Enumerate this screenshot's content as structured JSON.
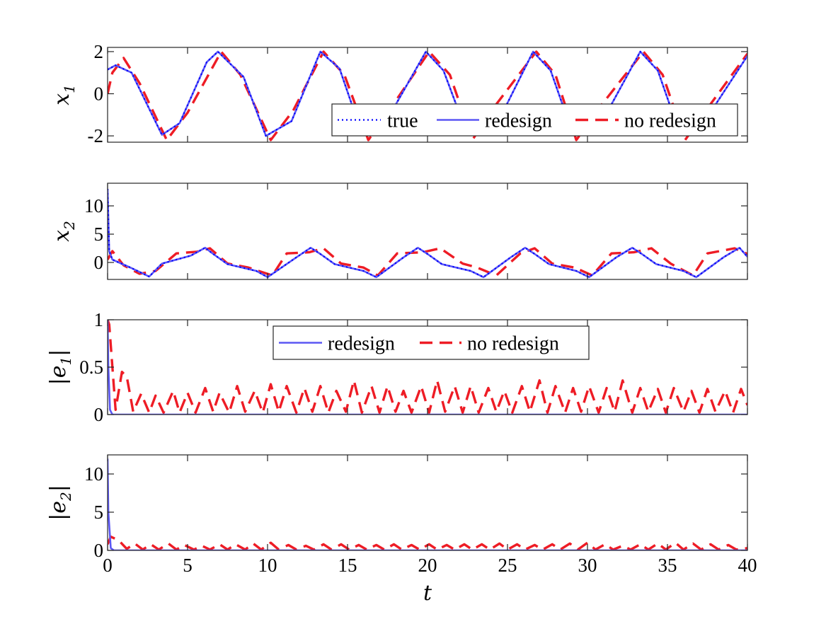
{
  "chart_data": [
    {
      "type": "line",
      "title": "",
      "xlabel": "",
      "ylabel": "x",
      "ylabel_sub": "1",
      "xlim": [
        0,
        40
      ],
      "ylim": [
        -2.3,
        2.2
      ],
      "yticks": [
        -2,
        0,
        2
      ],
      "ytick_labels": [
        "-2",
        "0",
        "2"
      ],
      "legend": {
        "placement": "bottom-right",
        "entries": [
          "true",
          "redesign",
          "no redesign"
        ]
      },
      "series": [
        {
          "name": "true",
          "style": "dotted",
          "color": "#0000ff",
          "x": [
            0,
            0.5,
            1.5,
            3.4,
            4.5,
            6.2,
            6.9,
            8.5,
            9.9,
            11.5,
            13.3,
            14.5,
            15.9,
            17.5,
            19.9,
            21.0,
            22.5,
            24.5,
            26.6,
            27.7,
            29.1,
            31.0,
            33.3,
            34.4,
            35.8,
            37.5,
            40.0
          ],
          "y": [
            1.15,
            1.35,
            1.0,
            -1.95,
            -1.4,
            1.5,
            2.0,
            0.8,
            -2.0,
            -1.3,
            2.0,
            1.2,
            -1.9,
            -1.2,
            2.0,
            1.1,
            -1.95,
            -1.2,
            2.0,
            1.1,
            -1.95,
            -1.2,
            2.0,
            1.1,
            -1.95,
            -1.1,
            1.8
          ]
        },
        {
          "name": "redesign",
          "style": "solid",
          "color": "#5b57f4",
          "x": [
            0,
            0.5,
            1.5,
            3.4,
            4.5,
            6.2,
            6.9,
            8.5,
            9.9,
            11.5,
            13.3,
            14.5,
            15.9,
            17.5,
            19.9,
            21.0,
            22.5,
            24.5,
            26.6,
            27.7,
            29.1,
            31.0,
            33.3,
            34.4,
            35.8,
            37.5,
            40.0
          ],
          "y": [
            1.15,
            1.35,
            1.0,
            -1.95,
            -1.4,
            1.5,
            2.0,
            0.8,
            -2.0,
            -1.3,
            2.0,
            1.2,
            -1.9,
            -1.2,
            2.0,
            1.1,
            -1.95,
            -1.2,
            2.0,
            1.1,
            -1.95,
            -1.2,
            2.0,
            1.1,
            -1.95,
            -1.1,
            1.8
          ]
        },
        {
          "name": "no redesign",
          "style": "dashed",
          "color": "#ee1c25",
          "x": [
            0,
            0.3,
            1.0,
            2.0,
            3.7,
            5.0,
            7.1,
            8.3,
            10.2,
            11.6,
            13.5,
            14.8,
            16.3,
            17.6,
            20.1,
            21.4,
            22.8,
            24.0,
            26.8,
            28.0,
            29.3,
            30.6,
            33.5,
            34.7,
            36.1,
            37.4,
            40.0
          ],
          "y": [
            0.0,
            1.0,
            1.7,
            0.5,
            -2.2,
            -0.9,
            2.0,
            0.9,
            -2.2,
            -0.8,
            2.0,
            0.9,
            -2.2,
            -0.8,
            2.0,
            0.9,
            -2.2,
            -0.8,
            2.0,
            0.9,
            -2.2,
            -0.8,
            2.0,
            0.9,
            -2.2,
            -0.8,
            1.9
          ]
        }
      ]
    },
    {
      "type": "line",
      "title": "",
      "xlabel": "",
      "ylabel": "x",
      "ylabel_sub": "2",
      "xlim": [
        0,
        40
      ],
      "ylim": [
        -3,
        14
      ],
      "yticks": [
        0,
        5,
        10
      ],
      "ytick_labels": [
        "0",
        "5",
        "10"
      ],
      "series": [
        {
          "name": "true",
          "style": "dotted",
          "color": "#0000ff",
          "x": [
            0,
            0.1,
            0.3,
            1.5,
            2.6,
            3.4,
            5.2,
            6.1,
            6.6,
            7.5,
            9.3,
            10.0,
            11.8,
            12.7,
            13.3,
            14.2,
            16.0,
            16.8,
            18.5,
            19.4,
            20.0,
            20.9,
            22.7,
            23.5,
            25.2,
            26.1,
            26.7,
            27.6,
            29.3,
            30.1,
            31.8,
            32.8,
            33.4,
            34.3,
            36.0,
            36.8,
            38.5,
            39.5,
            40.0
          ],
          "y": [
            13,
            2,
            0.5,
            -1.0,
            -2.5,
            -0.2,
            1.2,
            2.6,
            1.5,
            -0.3,
            -1.5,
            -2.6,
            0.9,
            2.6,
            1.5,
            -0.3,
            -1.5,
            -2.6,
            0.9,
            2.6,
            1.5,
            -0.3,
            -1.5,
            -2.6,
            0.9,
            2.6,
            1.5,
            -0.3,
            -1.5,
            -2.6,
            0.9,
            2.6,
            1.5,
            -0.3,
            -1.5,
            -2.6,
            0.9,
            2.6,
            1.0
          ]
        },
        {
          "name": "redesign",
          "style": "solid",
          "color": "#5b57f4",
          "x": [
            0,
            0.1,
            0.3,
            1.5,
            2.6,
            3.4,
            5.2,
            6.1,
            6.6,
            7.5,
            9.3,
            10.0,
            11.8,
            12.7,
            13.3,
            14.2,
            16.0,
            16.8,
            18.5,
            19.4,
            20.0,
            20.9,
            22.7,
            23.5,
            25.2,
            26.1,
            26.7,
            27.6,
            29.3,
            30.1,
            31.8,
            32.8,
            33.4,
            34.3,
            36.0,
            36.8,
            38.5,
            39.5,
            40.0
          ],
          "y": [
            13,
            2,
            0.5,
            -1.0,
            -2.5,
            -0.2,
            1.2,
            2.6,
            1.5,
            -0.3,
            -1.5,
            -2.6,
            0.9,
            2.6,
            1.5,
            -0.3,
            -1.5,
            -2.6,
            0.9,
            2.6,
            1.5,
            -0.3,
            -1.5,
            -2.6,
            0.9,
            2.6,
            1.5,
            -0.3,
            -1.5,
            -2.6,
            0.9,
            2.6,
            1.5,
            -0.3,
            -1.5,
            -2.6,
            0.9,
            2.6,
            1.0
          ]
        },
        {
          "name": "no redesign",
          "style": "dashed",
          "color": "#ee1c25",
          "x": [
            0,
            0.3,
            1.0,
            2.0,
            3.0,
            4.3,
            5.6,
            6.4,
            7.5,
            8.8,
            10.3,
            11.2,
            12.6,
            13.5,
            14.6,
            16.0,
            16.9,
            18.1,
            19.7,
            20.8,
            22.2,
            23.1,
            24.3,
            25.8,
            26.7,
            27.8,
            29.2,
            30.3,
            31.5,
            32.9,
            34.0,
            35.2,
            36.6,
            37.5,
            39.2,
            40.0
          ],
          "y": [
            0.5,
            2.0,
            -0.5,
            -2.0,
            -1.5,
            1.6,
            1.9,
            2.5,
            -0.2,
            -0.9,
            -2.3,
            1.6,
            1.8,
            2.5,
            -0.2,
            -0.9,
            -2.3,
            1.6,
            1.8,
            2.5,
            -0.2,
            -0.9,
            -2.3,
            1.6,
            2.5,
            -0.2,
            -0.9,
            -2.3,
            1.6,
            1.8,
            2.5,
            -0.2,
            -2.3,
            1.6,
            2.5,
            1.5
          ]
        }
      ]
    },
    {
      "type": "line",
      "title": "",
      "xlabel": "",
      "ylabel": "|e",
      "ylabel_sub": "1",
      "ylabel_suffix": "|",
      "xlim": [
        0,
        40
      ],
      "ylim": [
        0,
        1
      ],
      "yticks": [
        0,
        0.5,
        1
      ],
      "ytick_labels": [
        "0",
        "0.5",
        "1"
      ],
      "legend": {
        "placement": "top-center",
        "entries": [
          "redesign",
          "no redesign"
        ]
      },
      "series": [
        {
          "name": "redesign",
          "style": "solid",
          "color": "#5b57f4",
          "x": [
            0,
            0.05,
            0.15,
            0.3,
            40.0
          ],
          "y": [
            1.0,
            0.5,
            0.05,
            0.0,
            0.0
          ]
        },
        {
          "name": "no redesign",
          "style": "dashed",
          "color": "#ee1c25",
          "x": [
            0,
            0.1,
            0.5,
            0.9,
            1.2,
            1.6,
            2.1,
            2.6,
            3.0,
            3.5,
            4.1,
            4.5,
            5.0,
            5.5,
            6.1,
            6.6,
            7.0,
            7.6,
            8.1,
            8.6,
            9.2,
            9.7,
            10.2,
            10.7,
            11.2,
            11.8,
            12.3,
            12.8,
            13.3,
            13.8,
            14.3,
            14.9,
            15.4,
            15.9,
            16.5,
            17.0,
            17.5,
            18.0,
            18.5,
            19.0,
            19.6,
            20.1,
            20.6,
            21.1,
            21.7,
            22.2,
            22.7,
            23.2,
            23.8,
            24.3,
            24.8,
            25.3,
            25.9,
            26.4,
            27.0,
            27.5,
            28.0,
            28.6,
            29.1,
            29.6,
            30.1,
            30.7,
            31.2,
            31.7,
            32.2,
            32.8,
            33.3,
            33.8,
            34.4,
            34.9,
            35.4,
            36.0,
            36.5,
            37.0,
            37.5,
            38.0,
            38.6,
            39.1,
            39.6,
            40.0
          ],
          "y": [
            1.0,
            0.95,
            0.05,
            0.45,
            0.4,
            0.03,
            0.22,
            0.02,
            0.2,
            0.02,
            0.25,
            0.02,
            0.23,
            0.02,
            0.28,
            0.03,
            0.23,
            0.02,
            0.3,
            0.03,
            0.25,
            0.02,
            0.32,
            0.03,
            0.3,
            0.02,
            0.28,
            0.03,
            0.3,
            0.02,
            0.25,
            0.03,
            0.36,
            0.02,
            0.3,
            0.02,
            0.3,
            0.03,
            0.25,
            0.02,
            0.3,
            0.02,
            0.36,
            0.03,
            0.3,
            0.02,
            0.3,
            0.02,
            0.28,
            0.03,
            0.25,
            0.02,
            0.3,
            0.03,
            0.36,
            0.02,
            0.3,
            0.02,
            0.28,
            0.03,
            0.3,
            0.02,
            0.28,
            0.03,
            0.36,
            0.02,
            0.28,
            0.03,
            0.27,
            0.02,
            0.28,
            0.03,
            0.25,
            0.02,
            0.27,
            0.03,
            0.25,
            0.02,
            0.27,
            0.1
          ]
        }
      ]
    },
    {
      "type": "line",
      "title": "",
      "xlabel": "t",
      "ylabel": "|e",
      "ylabel_sub": "2",
      "ylabel_suffix": "|",
      "xlim": [
        0,
        40
      ],
      "ylim": [
        0,
        12.5
      ],
      "yticks": [
        0,
        5,
        10
      ],
      "ytick_labels": [
        "0",
        "5",
        "10"
      ],
      "xticks": [
        0,
        5,
        10,
        15,
        20,
        25,
        30,
        35,
        40
      ],
      "xtick_labels": [
        "0",
        "5",
        "10",
        "15",
        "20",
        "25",
        "30",
        "35",
        "40"
      ],
      "series": [
        {
          "name": "redesign",
          "style": "solid",
          "color": "#5b57f4",
          "x": [
            0,
            0.05,
            0.2,
            0.4,
            40.0
          ],
          "y": [
            12.0,
            5.0,
            0.3,
            0.0,
            0.0
          ]
        },
        {
          "name": "no redesign",
          "style": "dashed",
          "color": "#ee1c25",
          "x": [
            0,
            0.2,
            0.7,
            1.2,
            1.7,
            2.2,
            2.7,
            3.2,
            3.8,
            4.3,
            4.8,
            5.4,
            5.9,
            6.4,
            7.0,
            7.5,
            8.0,
            8.6,
            9.1,
            9.6,
            10.2,
            10.7,
            11.3,
            11.8,
            12.4,
            12.9,
            13.5,
            14.0,
            14.6,
            15.1,
            15.7,
            16.2,
            16.8,
            17.3,
            17.9,
            18.4,
            19.0,
            19.5,
            20.1,
            20.6,
            21.2,
            21.7,
            22.3,
            22.8,
            23.4,
            23.9,
            24.5,
            25.0,
            25.6,
            26.1,
            26.7,
            27.2,
            27.8,
            28.3,
            28.9,
            29.4,
            30.0,
            30.5,
            31.1,
            31.6,
            32.2,
            32.7,
            33.3,
            33.8,
            34.4,
            34.9,
            35.5,
            36.0,
            36.6,
            37.1,
            37.7,
            38.2,
            38.8,
            39.3,
            40.0
          ],
          "y": [
            0.8,
            1.8,
            1.3,
            0.2,
            0.9,
            0.1,
            0.8,
            0.1,
            0.9,
            0.1,
            0.7,
            0.1,
            0.6,
            0.1,
            0.8,
            0.1,
            0.8,
            0.1,
            0.9,
            0.1,
            1.0,
            0.1,
            0.7,
            0.1,
            0.6,
            0.1,
            0.8,
            0.1,
            0.8,
            0.1,
            0.7,
            0.1,
            0.7,
            0.1,
            0.8,
            0.1,
            0.7,
            0.1,
            0.8,
            0.1,
            0.7,
            0.1,
            0.8,
            0.1,
            0.8,
            0.1,
            0.9,
            0.1,
            0.8,
            0.1,
            0.7,
            0.1,
            0.8,
            0.1,
            0.9,
            0.1,
            1.0,
            0.1,
            0.8,
            0.1,
            0.6,
            0.1,
            0.8,
            0.1,
            0.9,
            0.1,
            1.0,
            0.1,
            0.9,
            0.1,
            0.8,
            0.1,
            0.7,
            0.1,
            0.3
          ]
        }
      ]
    }
  ]
}
